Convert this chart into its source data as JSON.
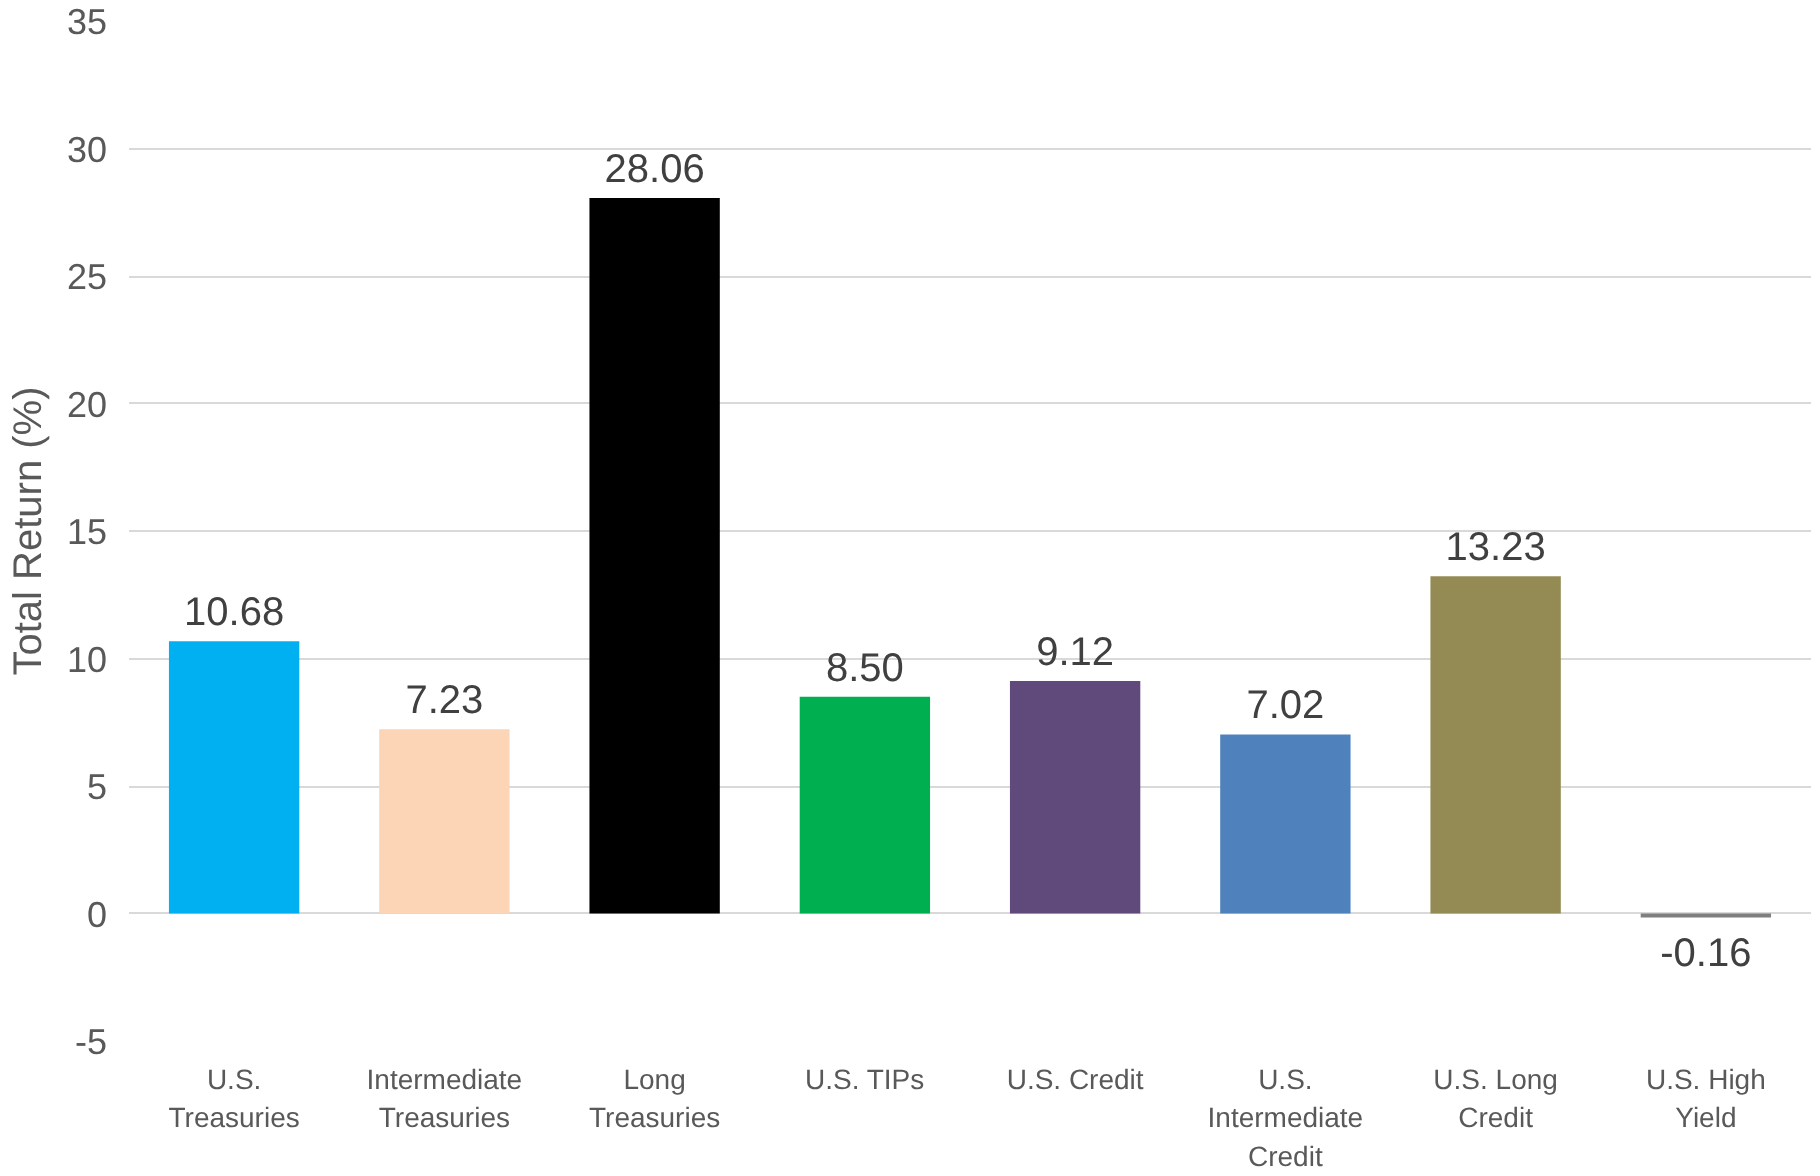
{
  "chart_data": {
    "type": "bar",
    "ylabel": "Total Return (%)",
    "categories": [
      "U.S. Treasuries",
      "Intermediate Treasuries",
      "Long Treasuries",
      "U.S. TIPs",
      "U.S. Credit",
      "U.S. Intermediate Credit",
      "U.S. Long Credit",
      "U.S. High Yield"
    ],
    "values": [
      10.68,
      7.23,
      28.06,
      8.5,
      9.12,
      7.02,
      13.23,
      -0.16
    ],
    "value_labels": [
      "10.68",
      "7.23",
      "28.06",
      "8.50",
      "9.12",
      "7.02",
      "13.23",
      "-0.16"
    ],
    "colors": [
      "#00b0f0",
      "#fbd5b5",
      "#000000",
      "#00b050",
      "#604a7b",
      "#4f81bd",
      "#948a54",
      "#7f7f7f"
    ],
    "ylim": [
      -5,
      35
    ],
    "yticks": [
      -5,
      0,
      5,
      10,
      15,
      20,
      25,
      30,
      35
    ],
    "grid": "y"
  }
}
